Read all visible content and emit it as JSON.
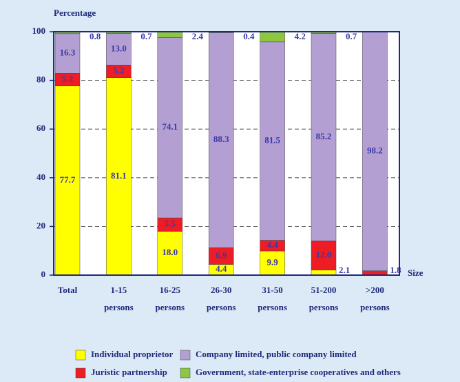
{
  "chart_data": {
    "type": "stacked_bar",
    "y_axis_label": "Percentage",
    "x_axis_label": "Size",
    "categories": [
      [
        "Total"
      ],
      [
        "1-15",
        "persons"
      ],
      [
        "16-25",
        "persons"
      ],
      [
        "26-30",
        "persons"
      ],
      [
        "31-50",
        "persons"
      ],
      [
        "51-200",
        "persons"
      ],
      [
        ">200",
        "persons"
      ]
    ],
    "ylim": [
      0,
      100
    ],
    "yticks": [
      0,
      20,
      40,
      60,
      80,
      100
    ],
    "grid": true,
    "series": [
      {
        "name": "Individual proprietor",
        "color": "#ffff00",
        "values": [
          77.7,
          81.1,
          18.0,
          4.4,
          9.9,
          2.1,
          0
        ],
        "value_labels": [
          "77.7",
          "81.1",
          "18.0",
          "4.4",
          "9.9",
          "2.1",
          null
        ]
      },
      {
        "name": "Juristic partnership",
        "color": "#ee1c24",
        "values": [
          5.2,
          5.2,
          5.5,
          6.9,
          4.4,
          12.0,
          1.8
        ],
        "value_labels": [
          "5.2",
          "5.2",
          "5.5",
          "6.9",
          "4.4",
          "12.0",
          "1.8"
        ]
      },
      {
        "name": "Company limited, public company limited",
        "color": "#b49fd2",
        "values": [
          16.3,
          13.0,
          74.1,
          88.3,
          81.5,
          85.2,
          98.2
        ],
        "value_labels": [
          "16.3",
          "13.0",
          "74.1",
          "88.3",
          "81.5",
          "85.2",
          "98.2"
        ]
      },
      {
        "name": "Government, state-enterprise cooperatives and others",
        "color": "#8dc63f",
        "values": [
          0.8,
          0.7,
          2.4,
          0.4,
          4.2,
          0.7,
          0
        ],
        "value_labels": [
          "0.8",
          "0.7",
          "2.4",
          "0.4",
          "4.2",
          "0.7",
          null
        ]
      }
    ],
    "legend_order": [
      0,
      2,
      1,
      3
    ]
  }
}
